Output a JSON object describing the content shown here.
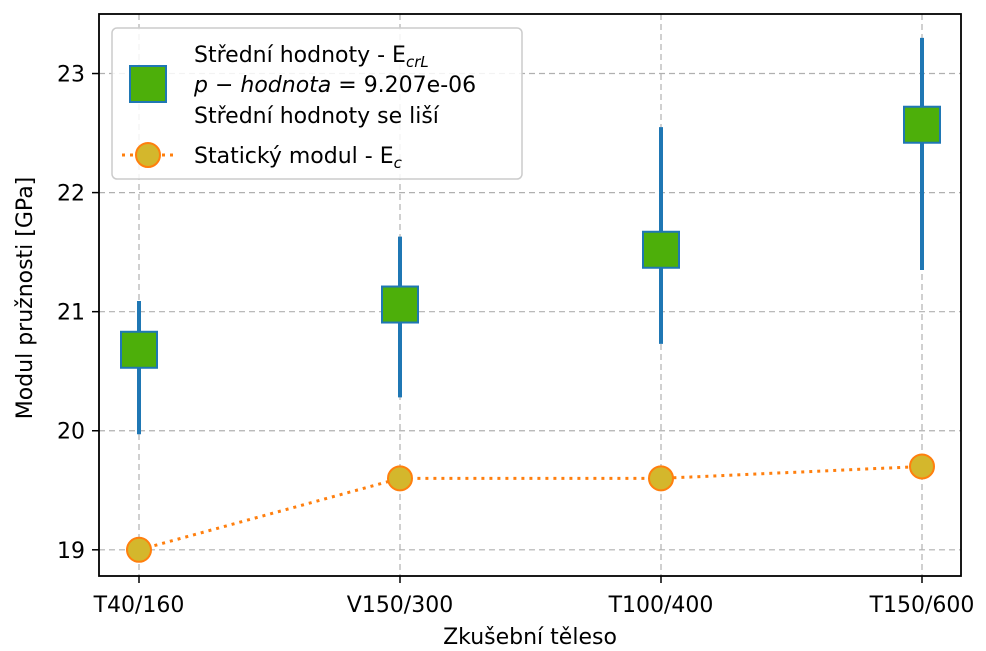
{
  "chart_data": {
    "type": "scatter",
    "xlabel": "Zkušební těleso",
    "ylabel": "Modul pružnosti [GPa]",
    "categories": [
      "T40/160",
      "V150/300",
      "T100/400",
      "T150/600"
    ],
    "ylim": [
      18.78,
      23.5
    ],
    "yticks": [
      19,
      20,
      21,
      22,
      23
    ],
    "grid": true,
    "legend_position": "top-left",
    "legend": {
      "entry1_line1": "Střední hodnoty - E",
      "entry1_line1_sub": "crL",
      "entry1_line2_math": "p − hodnota",
      "entry1_line2_eq": " = ",
      "entry1_line2_value": "9.207e-06",
      "entry1_line3": "Střední hodnoty se liší",
      "entry2_label": "Statický modul - E",
      "entry2_sub": "c"
    },
    "series": [
      {
        "name": "Střední hodnoty - E_crL",
        "marker": "square",
        "color": "#4daf0a",
        "edge_color": "#1f77b4",
        "mean": [
          20.68,
          21.06,
          21.52,
          22.57
        ],
        "lower": [
          19.97,
          20.28,
          20.73,
          21.35
        ],
        "upper": [
          21.09,
          21.63,
          22.55,
          23.3
        ]
      },
      {
        "name": "Statický modul - E_c",
        "marker": "circle",
        "color": "#d4b72c",
        "edge_color": "#ff7f0e",
        "line_style": "dotted",
        "values": [
          19.0,
          19.6,
          19.6,
          19.7
        ]
      }
    ]
  }
}
